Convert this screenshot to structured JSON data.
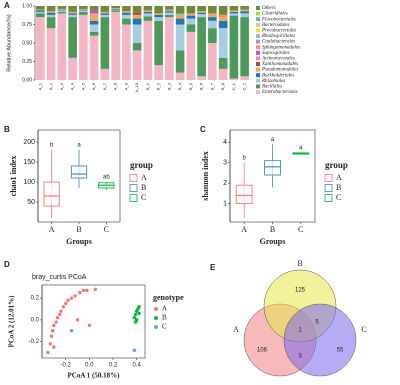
{
  "chart_data": [
    {
      "type": "stacked_bar",
      "panel": "A",
      "ylabel": "Relative Abundance(%)",
      "categories": [
        "A_1",
        "A_2",
        "A_3",
        "A_4",
        "A_5",
        "A_6",
        "A_7",
        "A_8",
        "A_9",
        "A_10",
        "B_1",
        "B_2",
        "B_3",
        "B_4",
        "B_5",
        "B_6",
        "B_7",
        "B_8",
        "C_1",
        "C_2"
      ],
      "ylim": [
        0,
        1
      ],
      "yticks": [
        {
          "value": 0,
          "label": "0.00"
        },
        {
          "value": 0.25,
          "label": "0.25"
        },
        {
          "value": 0.5,
          "label": "0.50"
        },
        {
          "value": 0.75,
          "label": "0.75"
        },
        {
          "value": 1,
          "label": "1.00"
        }
      ],
      "series": [
        {
          "name": "Others",
          "color": "#6e8b3d",
          "values": [
            0.05,
            0.07,
            0.04,
            0.08,
            0.04,
            0.06,
            0.08,
            0.03,
            0.07,
            0.09,
            0.06,
            0.1,
            0.05,
            0.1,
            0.1,
            0.07,
            0.1,
            0.12,
            0.06,
            0.05
          ]
        },
        {
          "name": "Clostridiales",
          "color": "#a6d854",
          "values": [
            0,
            0,
            0,
            0,
            0,
            0,
            0,
            0,
            0,
            0,
            0,
            0,
            0,
            0,
            0,
            0,
            0,
            0,
            0,
            0
          ]
        },
        {
          "name": "Flavobacteriales",
          "color": "#66c2a5",
          "values": [
            0,
            0,
            0,
            0,
            0,
            0,
            0,
            0,
            0,
            0,
            0,
            0,
            0,
            0.02,
            0,
            0,
            0,
            0,
            0,
            0
          ]
        },
        {
          "name": "Bacteroidales",
          "color": "#e5c494",
          "values": [
            0,
            0,
            0,
            0,
            0,
            0,
            0,
            0,
            0,
            0,
            0,
            0,
            0,
            0,
            0,
            0,
            0,
            0,
            0,
            0
          ]
        },
        {
          "name": "Procabacteriales",
          "color": "#ffd92f",
          "values": [
            0,
            0,
            0,
            0,
            0,
            0,
            0,
            0,
            0,
            0,
            0,
            0,
            0,
            0,
            0,
            0,
            0,
            0,
            0,
            0
          ]
        },
        {
          "name": "Rhodospirillales",
          "color": "#b3b3b3",
          "values": [
            0,
            0,
            0,
            0,
            0,
            0,
            0,
            0,
            0,
            0,
            0,
            0,
            0,
            0,
            0,
            0,
            0,
            0,
            0,
            0
          ]
        },
        {
          "name": "Caulobacterales",
          "color": "#8da0cb",
          "values": [
            0,
            0,
            0,
            0,
            0,
            0,
            0,
            0,
            0,
            0,
            0,
            0,
            0,
            0,
            0,
            0,
            0,
            0,
            0,
            0
          ]
        },
        {
          "name": "Sphingomonadales",
          "color": "#fc8d62",
          "values": [
            0,
            0,
            0,
            0,
            0,
            0,
            0,
            0,
            0,
            0,
            0,
            0,
            0,
            0,
            0,
            0,
            0,
            0.03,
            0,
            0
          ]
        },
        {
          "name": "Saprospirales",
          "color": "#c74bd1",
          "values": [
            0,
            0,
            0,
            0,
            0,
            0.04,
            0,
            0,
            0,
            0,
            0,
            0,
            0,
            0,
            0,
            0,
            0,
            0,
            0,
            0
          ]
        },
        {
          "name": "Actinomycetales",
          "color": "#e78ac3",
          "values": [
            0,
            0,
            0,
            0,
            0,
            0,
            0,
            0,
            0,
            0,
            0,
            0,
            0,
            0,
            0,
            0,
            0,
            0,
            0,
            0
          ]
        },
        {
          "name": "Xanthomonadales",
          "color": "#a0522d",
          "values": [
            0,
            0,
            0,
            0,
            0,
            0,
            0,
            0,
            0,
            0.03,
            0,
            0,
            0,
            0,
            0,
            0,
            0,
            0,
            0,
            0
          ]
        },
        {
          "name": "Pseudomonadales",
          "color": "#f4a460",
          "values": [
            0.01,
            0.02,
            0.01,
            0.02,
            0.01,
            0.1,
            0.02,
            0.01,
            0.02,
            0.05,
            0.02,
            0.02,
            0.02,
            0.05,
            0.03,
            0.02,
            0.05,
            0.05,
            0.02,
            0.02
          ]
        },
        {
          "name": "Burkholderiales",
          "color": "#1f78b4",
          "values": [
            0.02,
            0.03,
            0.01,
            0.02,
            0.01,
            0.05,
            0.02,
            0.01,
            0.03,
            0.08,
            0.02,
            0.03,
            0.02,
            0.08,
            0.04,
            0.02,
            0.05,
            0.1,
            0.02,
            0.03
          ]
        },
        {
          "name": "Rhizobiales",
          "color": "#a6cee3",
          "values": [
            0.02,
            0.03,
            0.02,
            0.03,
            0.02,
            0.1,
            0.03,
            0.01,
            0.05,
            0.25,
            0.04,
            0.05,
            0.03,
            0.35,
            0.08,
            0.04,
            0.1,
            0.4,
            0.03,
            0.05
          ]
        },
        {
          "name": "Bacillales",
          "color": "#4c9a5a",
          "values": [
            0.05,
            0.15,
            0.02,
            0.55,
            0.04,
            0.05,
            0.7,
            0.02,
            0.08,
            0.1,
            0.06,
            0.6,
            0.03,
            0.3,
            0.1,
            0.8,
            0.2,
            0.15,
            0.85,
            0.8
          ]
        },
        {
          "name": "Enterobacteriales",
          "color": "#f4b6c2",
          "values": [
            0.85,
            0.7,
            0.9,
            0.3,
            0.88,
            0.6,
            0.15,
            0.92,
            0.75,
            0.4,
            0.8,
            0.2,
            0.85,
            0.1,
            0.65,
            0.05,
            0.5,
            0.15,
            0.02,
            0.05
          ]
        }
      ]
    },
    {
      "type": "box",
      "panel": "B",
      "xlabel": "Groups",
      "ylabel": "chao1 index",
      "legend_title": "group",
      "categories": [
        "A",
        "B",
        "C"
      ],
      "colors": [
        "#f8766d",
        "#3b8bc2",
        "#00ba38"
      ],
      "stats": [
        [
          10,
          40,
          65,
          100,
          180
        ],
        [
          85,
          110,
          120,
          140,
          180
        ],
        [
          80,
          85,
          92,
          98,
          100
        ]
      ],
      "letters": [
        "b",
        "a",
        "ab"
      ],
      "ylim": [
        0,
        230
      ],
      "yticks": [
        50,
        100,
        150,
        200
      ]
    },
    {
      "type": "box",
      "panel": "C",
      "xlabel": "Groups",
      "ylabel": "shannon index",
      "legend_title": "group",
      "categories": [
        "A",
        "B",
        "C"
      ],
      "colors": [
        "#f8766d",
        "#3b8bc2",
        "#00ba38"
      ],
      "stats": [
        [
          0.3,
          1.0,
          1.4,
          1.9,
          3.0
        ],
        [
          1.8,
          2.4,
          2.8,
          3.1,
          3.9
        ],
        [
          3.4,
          3.42,
          3.45,
          3.48,
          3.5
        ]
      ],
      "letters": [
        "b",
        "a",
        "a"
      ],
      "ylim": [
        0.1,
        4.6
      ],
      "yticks": [
        1,
        2,
        3,
        4
      ]
    },
    {
      "type": "scatter",
      "panel": "D",
      "title": "bray_curtis PCoA",
      "xlabel": "PCoA 1 (50.18%)",
      "ylabel": "PCoA 2 (12.01%)",
      "legend_title": "genotype",
      "xlim": [
        -0.4,
        0.47
      ],
      "ylim": [
        -0.35,
        0.32
      ],
      "xticks": [
        -0.2,
        {
          "value": 0,
          "label": "0.0"
        },
        0.2,
        0.4
      ],
      "yticks": [
        -0.2,
        {
          "value": 0,
          "label": "0.0"
        },
        0.2
      ],
      "series": [
        {
          "name": "A",
          "color": "#f8766d",
          "x": [
            -0.35,
            -0.33,
            -0.32,
            -0.31,
            -0.3,
            -0.28,
            -0.27,
            -0.25,
            -0.24,
            -0.22,
            -0.2,
            -0.18,
            -0.15,
            -0.12,
            -0.08,
            -0.05,
            -0.02,
            0.05,
            -0.1,
            0,
            -0.3
          ],
          "y": [
            -0.3,
            -0.22,
            -0.15,
            -0.1,
            -0.05,
            -0.02,
            0.02,
            0.05,
            0.08,
            0.12,
            0.15,
            0.18,
            0.2,
            0.22,
            0.25,
            0.27,
            0.27,
            0.28,
            0,
            -0.05,
            -0.25
          ]
        },
        {
          "name": "B",
          "color": "#00ba38",
          "x": [
            0.38,
            0.39,
            0.4,
            0.41,
            0.42,
            0.39,
            0.4,
            0.42
          ],
          "y": [
            0.02,
            0.05,
            0.08,
            0.1,
            0.12,
            -0.02,
            0,
            0.06
          ]
        },
        {
          "name": "C",
          "color": "#619cff",
          "x": [
            -0.15,
            0.38
          ],
          "y": [
            -0.1,
            -0.28
          ]
        }
      ]
    },
    {
      "type": "venn",
      "panel": "E",
      "sets": [
        {
          "name": "A",
          "color": "#f08080"
        },
        {
          "name": "B",
          "color": "#e8e84a"
        },
        {
          "name": "C",
          "color": "#7b68ee"
        }
      ],
      "counts": {
        "A": 106,
        "B": 125,
        "C": 55,
        "B&C": 5,
        "A&C": 3,
        "A&B&C": 1
      }
    }
  ]
}
